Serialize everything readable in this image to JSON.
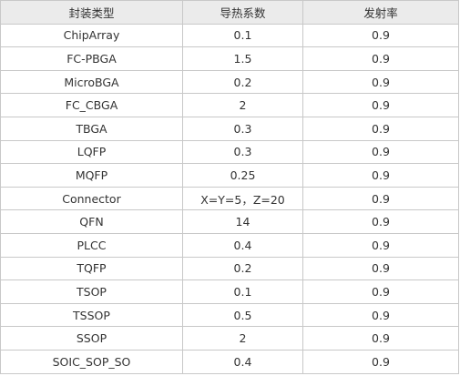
{
  "table": {
    "header": [
      "封装类型",
      "导热系数",
      "发射率"
    ],
    "rows": [
      [
        "ChipArray",
        "0.1",
        "0.9"
      ],
      [
        "FC-PBGA",
        "1.5",
        "0.9"
      ],
      [
        "MicroBGA",
        "0.2",
        "0.9"
      ],
      [
        "FC_CBGA",
        "2",
        "0.9"
      ],
      [
        "TBGA",
        "0.3",
        "0.9"
      ],
      [
        "LQFP",
        "0.3",
        "0.9"
      ],
      [
        "MQFP",
        "0.25",
        "0.9"
      ],
      [
        "Connector",
        "X=Y=5，Z=20",
        "0.9"
      ],
      [
        "QFN",
        "14",
        "0.9"
      ],
      [
        "PLCC",
        "0.4",
        "0.9"
      ],
      [
        "TQFP",
        "0.2",
        "0.9"
      ],
      [
        "TSOP",
        "0.1",
        "0.9"
      ],
      [
        "TSSOP",
        "0.5",
        "0.9"
      ],
      [
        "SSOP",
        "2",
        "0.9"
      ],
      [
        "SOIC_SOP_SO",
        "0.4",
        "0.9"
      ]
    ]
  }
}
